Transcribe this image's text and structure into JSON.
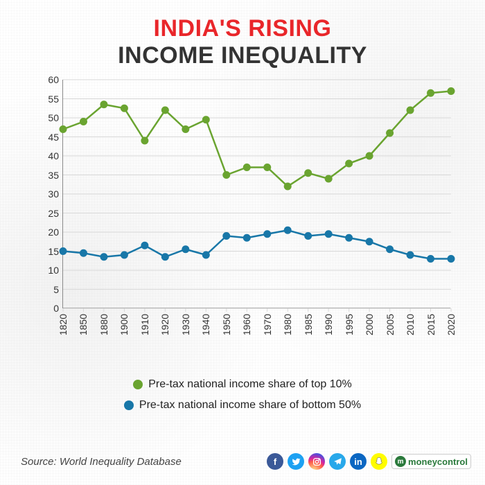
{
  "title": {
    "line1": "INDIA'S RISING",
    "line2": "INCOME INEQUALITY"
  },
  "chart": {
    "type": "line",
    "background_color": "#ffffff",
    "grid_color": "#d8d8d8",
    "ylim": [
      0,
      60
    ],
    "ytick_step": 5,
    "yticks": [
      0,
      5,
      10,
      15,
      20,
      25,
      30,
      35,
      40,
      45,
      50,
      55,
      60
    ],
    "xticks": [
      "1820",
      "1850",
      "1880",
      "1900",
      "1910",
      "1920",
      "1930",
      "1940",
      "1950",
      "1960",
      "1970",
      "1980",
      "1985",
      "1990",
      "1995",
      "2000",
      "2005",
      "2010",
      "2015",
      "2020"
    ],
    "xlabel_fontsize": 14,
    "ylabel_fontsize": 14,
    "marker_style": "circle",
    "marker_size": 5,
    "line_width": 2.5,
    "series": [
      {
        "name": "top10",
        "label": "Pre-tax national income share of top 10%",
        "color": "#6aa430",
        "values": [
          47,
          49,
          53.5,
          52.5,
          44,
          52,
          47,
          49.5,
          35,
          37,
          37,
          32,
          35.5,
          34,
          38,
          40,
          46,
          52,
          56.5,
          57
        ]
      },
      {
        "name": "bottom50",
        "label": "Pre-tax national income share of bottom 50%",
        "color": "#1877a8",
        "values": [
          15,
          14.5,
          13.5,
          14,
          16.5,
          13.5,
          15.5,
          14,
          19,
          18.5,
          19.5,
          20.5,
          19,
          19.5,
          18.5,
          17.5,
          15.5,
          14,
          13,
          13
        ]
      }
    ]
  },
  "legend": {
    "item1": "Pre-tax national income share of top 10%",
    "item2": "Pre-tax national income share of bottom 50%"
  },
  "source": "Source: World Inequality Database",
  "social": {
    "facebook_color": "#3b5998",
    "twitter_color": "#1da1f2",
    "instagram_color": "#e1306c",
    "telegram_color": "#28a8ea",
    "linkedin_color": "#0a66c2",
    "snapchat_color": "#fffc00",
    "logo_text": "moneycontrol"
  },
  "colors": {
    "title_accent": "#e9262a",
    "title_dark": "#333333"
  }
}
